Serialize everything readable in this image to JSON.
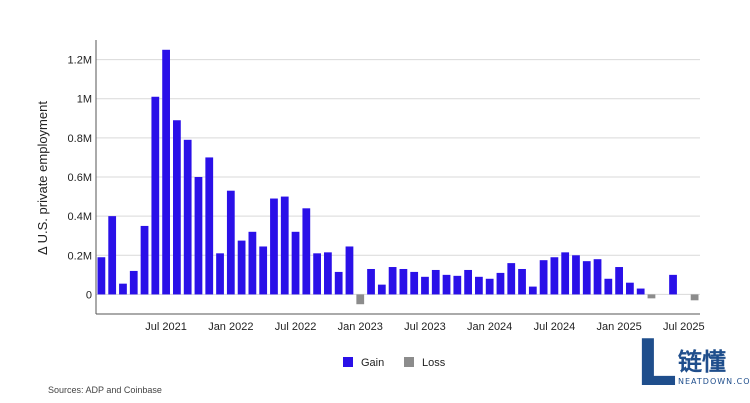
{
  "chart_data": {
    "type": "bar",
    "ylabel": "Δ U.S. private employment",
    "ylim": [
      -100000,
      1300000
    ],
    "yticks": [
      {
        "value": 0,
        "label": "0"
      },
      {
        "value": 200000,
        "label": "0.2M"
      },
      {
        "value": 400000,
        "label": "0.4M"
      },
      {
        "value": 600000,
        "label": "0.6M"
      },
      {
        "value": 800000,
        "label": "0.8M"
      },
      {
        "value": 1000000,
        "label": "1M"
      },
      {
        "value": 1200000,
        "label": "1.2M"
      }
    ],
    "xtick_labels": [
      {
        "month": "2021-07",
        "label": "Jul 2021"
      },
      {
        "month": "2022-01",
        "label": "Jan 2022"
      },
      {
        "month": "2022-07",
        "label": "Jul 2022"
      },
      {
        "month": "2023-01",
        "label": "Jan 2023"
      },
      {
        "month": "2023-07",
        "label": "Jul 2023"
      },
      {
        "month": "2024-01",
        "label": "Jan 2024"
      },
      {
        "month": "2024-07",
        "label": "Jul 2024"
      },
      {
        "month": "2025-01",
        "label": "Jan 2025"
      },
      {
        "month": "2025-07",
        "label": "Jul 2025"
      }
    ],
    "grid": "horizontal",
    "legend_position": "bottom-center",
    "series": [
      {
        "name": "Gain",
        "color": "#2a10e8"
      },
      {
        "name": "Loss",
        "color": "#8c8c8c"
      }
    ],
    "months": [
      "2021-01",
      "2021-02",
      "2021-03",
      "2021-04",
      "2021-05",
      "2021-06",
      "2021-07",
      "2021-08",
      "2021-09",
      "2021-10",
      "2021-11",
      "2021-12",
      "2022-01",
      "2022-02",
      "2022-03",
      "2022-04",
      "2022-05",
      "2022-06",
      "2022-07",
      "2022-08",
      "2022-09",
      "2022-10",
      "2022-11",
      "2022-12",
      "2023-01",
      "2023-02",
      "2023-03",
      "2023-04",
      "2023-05",
      "2023-06",
      "2023-07",
      "2023-08",
      "2023-09",
      "2023-10",
      "2023-11",
      "2023-12",
      "2024-01",
      "2024-02",
      "2024-03",
      "2024-04",
      "2024-05",
      "2024-06",
      "2024-07",
      "2024-08",
      "2024-09",
      "2024-10",
      "2024-11",
      "2024-12",
      "2025-01",
      "2025-02",
      "2025-03",
      "2025-04",
      "2025-05",
      "2025-06",
      "2025-07",
      "2025-08"
    ],
    "values": [
      190000,
      400000,
      55000,
      120000,
      350000,
      1010000,
      1250000,
      890000,
      790000,
      600000,
      700000,
      210000,
      530000,
      275000,
      320000,
      245000,
      490000,
      500000,
      320000,
      440000,
      210000,
      215000,
      115000,
      245000,
      -50000,
      130000,
      50000,
      140000,
      130000,
      115000,
      90000,
      125000,
      100000,
      95000,
      125000,
      90000,
      80000,
      110000,
      160000,
      130000,
      40000,
      175000,
      190000,
      215000,
      200000,
      170000,
      180000,
      80000,
      140000,
      60000,
      30000,
      -20000,
      0,
      100000,
      0,
      -30000
    ]
  },
  "legend": {
    "gain_label": "Gain",
    "loss_label": "Loss"
  },
  "source_text": "Sources: ADP and Coinbase",
  "watermark": {
    "letter": "L",
    "chinese": "链懂",
    "site": "NEATDOWN.COM"
  }
}
